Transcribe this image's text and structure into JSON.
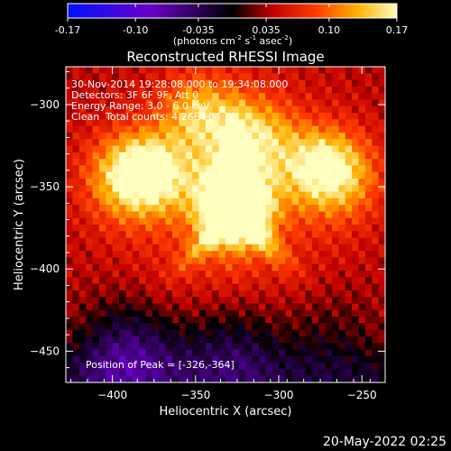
{
  "colorbar": {
    "ticks": [
      "-0.17",
      "-0.10",
      "-0.035",
      "0.035",
      "0.10",
      "0.17"
    ],
    "tick_values": [
      -0.17,
      -0.1,
      -0.035,
      0.035,
      0.1,
      0.17
    ],
    "range": [
      -0.17,
      0.17
    ],
    "units_prefix": "(photons cm",
    "units_exp1": "-2",
    "units_mid": " s",
    "units_exp2": "-1",
    "units_mid2": " asec",
    "units_exp3": "-2",
    "units_suffix": ")",
    "colormap": "rhessi-signed"
  },
  "chart_data": {
    "type": "heatmap",
    "title": "Reconstructed RHESSI Image",
    "xlabel": "Heliocentric X (arcsec)",
    "ylabel": "Heliocentric Y (arcsec)",
    "xlim": [
      -428,
      -236
    ],
    "ylim": [
      -469,
      -277
    ],
    "xticks": [
      -400,
      -350,
      -300,
      -250
    ],
    "yticks": [
      -300,
      -350,
      -400,
      -450
    ],
    "peak": {
      "x": -326,
      "y": -364,
      "value": 0.17
    },
    "value_range": [
      -0.17,
      0.17
    ],
    "features": [
      {
        "kind": "peak",
        "x": -326,
        "y": -364,
        "value": 0.17
      },
      {
        "kind": "bright",
        "x": -378,
        "y": -342,
        "value": 0.13
      },
      {
        "kind": "bright",
        "x": -276,
        "y": -338,
        "value": 0.1
      },
      {
        "kind": "bright",
        "x": -348,
        "y": -305,
        "value": 0.08
      },
      {
        "kind": "bright",
        "x": -312,
        "y": -318,
        "value": 0.07
      },
      {
        "kind": "negative",
        "x": -390,
        "y": -450,
        "value": -0.08
      },
      {
        "kind": "negative",
        "x": -328,
        "y": -447,
        "value": -0.06
      },
      {
        "kind": "negative",
        "x": -270,
        "y": -440,
        "value": -0.03
      }
    ]
  },
  "annotations": {
    "time": "30-Nov-2014 19:28:08.000 to 19:34:08.000",
    "detectors": "Detectors: 3F 6F 9F, Att 0",
    "energy": "Energy Range: 3.0 - 6.0 keV",
    "clean_label": "Clean",
    "total_counts": "Total counts: 4.26E+04",
    "peak_label": "Position of Peak = [-326,-364]"
  },
  "footer": {
    "timestamp": "20-May-2022 02:25"
  }
}
